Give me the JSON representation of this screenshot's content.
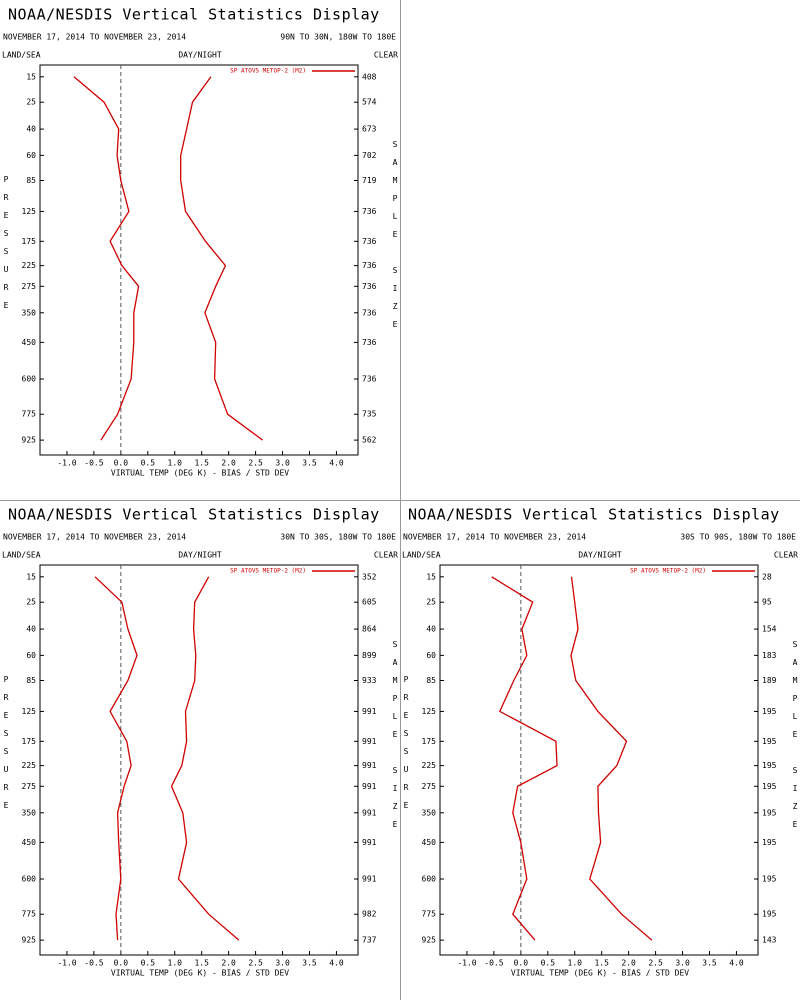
{
  "chart_data": [
    {
      "type": "line",
      "title": "NOAA/NESDIS Vertical Statistics Display",
      "subtitle": "NOVEMBER 17, 2014 TO NOVEMBER 23, 2014",
      "region": "90N TO 30N, 180W TO 180E",
      "left_label": "LAND/SEA",
      "center_label": "DAY/NIGHT",
      "right_label": "CLEAR",
      "y_label": "PRESSURE",
      "y2_label": "SAMPLE SIZE",
      "x_label": "VIRTUAL TEMP (DEG K) - BIAS / STD DEV",
      "categories": [
        15,
        25,
        40,
        60,
        85,
        125,
        175,
        225,
        275,
        350,
        450,
        600,
        775,
        925
      ],
      "sample_sizes": [
        408,
        574,
        673,
        702,
        719,
        736,
        736,
        736,
        736,
        736,
        736,
        736,
        735,
        562
      ],
      "ylim": [
        11.5,
        1020
      ],
      "xlim": [
        -1.5,
        4.4
      ],
      "xticks": [
        {
          "value": -1,
          "label": "-1.0"
        },
        -0.5,
        {
          "value": 0,
          "label": "0.0"
        },
        0.5,
        {
          "value": 1,
          "label": "1.0"
        },
        1.5,
        {
          "value": 2,
          "label": "2.0"
        },
        2.5,
        {
          "value": 3,
          "label": "3.0"
        },
        3.5,
        {
          "value": 4,
          "label": "4.0"
        }
      ],
      "series": [
        {
          "name": "SP ATOVS METOP-2 (M2)",
          "color": "#d00000",
          "values": [
            -0.87,
            -0.31,
            -0.04,
            -0.07,
            0.0,
            0.15,
            -0.2,
            0.02,
            0.33,
            0.24,
            0.24,
            0.19,
            -0.06,
            -0.37
          ],
          "std_dev": [
            1.67,
            1.33,
            1.22,
            1.11,
            1.11,
            1.2,
            1.57,
            1.94,
            1.76,
            1.56,
            1.76,
            1.74,
            1.98,
            2.63
          ]
        }
      ]
    },
    {
      "type": "line",
      "title": "NOAA/NESDIS Vertical Statistics Display",
      "subtitle": "NOVEMBER 17, 2014 TO NOVEMBER 23, 2014",
      "region": "30N TO 30S, 180W TO 180E",
      "left_label": "LAND/SEA",
      "center_label": "DAY/NIGHT",
      "right_label": "CLEAR",
      "y_label": "PRESSURE",
      "y2_label": "SAMPLE SIZE",
      "x_label": "VIRTUAL TEMP (DEG K) - BIAS / STD DEV",
      "categories": [
        15,
        25,
        40,
        60,
        85,
        125,
        175,
        225,
        275,
        350,
        450,
        600,
        775,
        925
      ],
      "sample_sizes": [
        352,
        605,
        864,
        899,
        933,
        991,
        991,
        991,
        991,
        991,
        991,
        991,
        982,
        737
      ],
      "ylim": [
        11.5,
        1020
      ],
      "xlim": [
        -1.5,
        4.4
      ],
      "xticks": [
        {
          "value": -1,
          "label": "-1.0"
        },
        -0.5,
        {
          "value": 0,
          "label": "0.0"
        },
        0.5,
        {
          "value": 1,
          "label": "1.0"
        },
        1.5,
        {
          "value": 2,
          "label": "2.0"
        },
        2.5,
        {
          "value": 3,
          "label": "3.0"
        },
        3.5,
        {
          "value": 4,
          "label": "4.0"
        }
      ],
      "series": [
        {
          "name": "SP ATOVS METOP-2 (M2)",
          "color": "#d00000",
          "values": [
            -0.48,
            0.02,
            0.13,
            0.3,
            0.13,
            -0.2,
            0.11,
            0.19,
            0.06,
            -0.06,
            -0.04,
            0.0,
            -0.09,
            -0.06
          ],
          "std_dev": [
            1.63,
            1.37,
            1.35,
            1.39,
            1.37,
            1.2,
            1.22,
            1.13,
            0.94,
            1.15,
            1.22,
            1.07,
            1.63,
            2.19
          ]
        }
      ]
    },
    {
      "type": "line",
      "title": "NOAA/NESDIS Vertical Statistics Display",
      "subtitle": "NOVEMBER 17, 2014 TO NOVEMBER 23, 2014",
      "region": "30S TO 90S, 180W TO 180E",
      "left_label": "LAND/SEA",
      "center_label": "DAY/NIGHT",
      "right_label": "CLEAR",
      "y_label": "PRESSURE",
      "y2_label": "SAMPLE SIZE",
      "x_label": "VIRTUAL TEMP (DEG K) - BIAS / STD DEV",
      "categories": [
        15,
        25,
        40,
        60,
        85,
        125,
        175,
        225,
        275,
        350,
        450,
        600,
        775,
        925
      ],
      "sample_sizes": [
        28,
        95,
        154,
        183,
        189,
        195,
        195,
        195,
        195,
        195,
        195,
        195,
        195,
        143
      ],
      "ylim": [
        11.5,
        1020
      ],
      "xlim": [
        -1.5,
        4.4
      ],
      "xticks": [
        {
          "value": -1,
          "label": "-1.0"
        },
        -0.5,
        {
          "value": 0,
          "label": "0.0"
        },
        0.5,
        {
          "value": 1,
          "label": "1.0"
        },
        1.5,
        {
          "value": 2,
          "label": "2.0"
        },
        2.5,
        {
          "value": 3,
          "label": "3.0"
        },
        3.5,
        {
          "value": 4,
          "label": "4.0"
        }
      ],
      "series": [
        {
          "name": "SP ATOVS METOP-2 (M2)",
          "color": "#d00000",
          "values": [
            -0.54,
            0.22,
            0.02,
            0.11,
            -0.13,
            -0.39,
            0.65,
            0.67,
            -0.06,
            -0.15,
            0.0,
            0.11,
            -0.15,
            0.26
          ],
          "std_dev": [
            0.94,
            1.0,
            1.06,
            0.93,
            1.02,
            1.43,
            1.96,
            1.78,
            1.43,
            1.44,
            1.48,
            1.28,
            1.87,
            2.43
          ]
        }
      ]
    }
  ]
}
